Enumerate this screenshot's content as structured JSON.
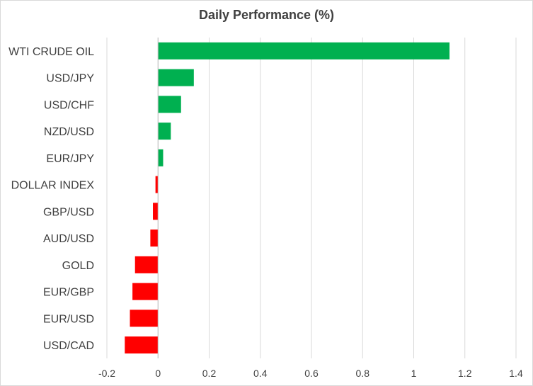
{
  "chart_data": {
    "type": "bar",
    "orientation": "horizontal",
    "title": "Daily Performance  (%)",
    "xlabel": "",
    "ylabel": "",
    "categories": [
      "WTI CRUDE OIL",
      "USD/JPY",
      "USD/CHF",
      "NZD/USD",
      "EUR/JPY",
      "DOLLAR INDEX",
      "GBP/USD",
      "AUD/USD",
      "GOLD",
      "EUR/GBP",
      "EUR/USD",
      "USD/CAD"
    ],
    "values": [
      1.14,
      0.14,
      0.09,
      0.05,
      0.02,
      -0.01,
      -0.02,
      -0.03,
      -0.09,
      -0.1,
      -0.11,
      -0.13
    ],
    "xlim": [
      -0.2,
      1.4
    ],
    "xticks": [
      "-0.2",
      "0",
      "0.2",
      "0.4",
      "0.6",
      "0.8",
      "1",
      "1.2",
      "1.4"
    ],
    "grid": "vertical",
    "legend": "none",
    "colors": {
      "positive": "#00b050",
      "negative": "#ff0000",
      "grid": "#d9d9d9",
      "text": "#404040"
    }
  }
}
